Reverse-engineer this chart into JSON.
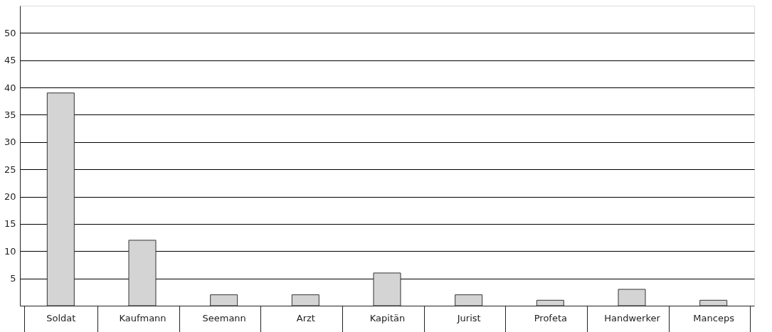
{
  "chart_data": {
    "type": "bar",
    "categories": [
      "Soldat",
      "Kaufmann",
      "Seemann",
      "Arzt",
      "Kapitän",
      "Jurist",
      "Profeta",
      "Handwerker",
      "Manceps"
    ],
    "values": [
      39,
      12,
      2,
      2,
      6,
      2,
      1,
      3,
      1
    ],
    "color": "#d4d4d4",
    "ylim": [
      0,
      55
    ],
    "yticks": [
      5,
      10,
      15,
      20,
      25,
      30,
      35,
      40,
      45,
      50
    ],
    "grid": "y"
  }
}
